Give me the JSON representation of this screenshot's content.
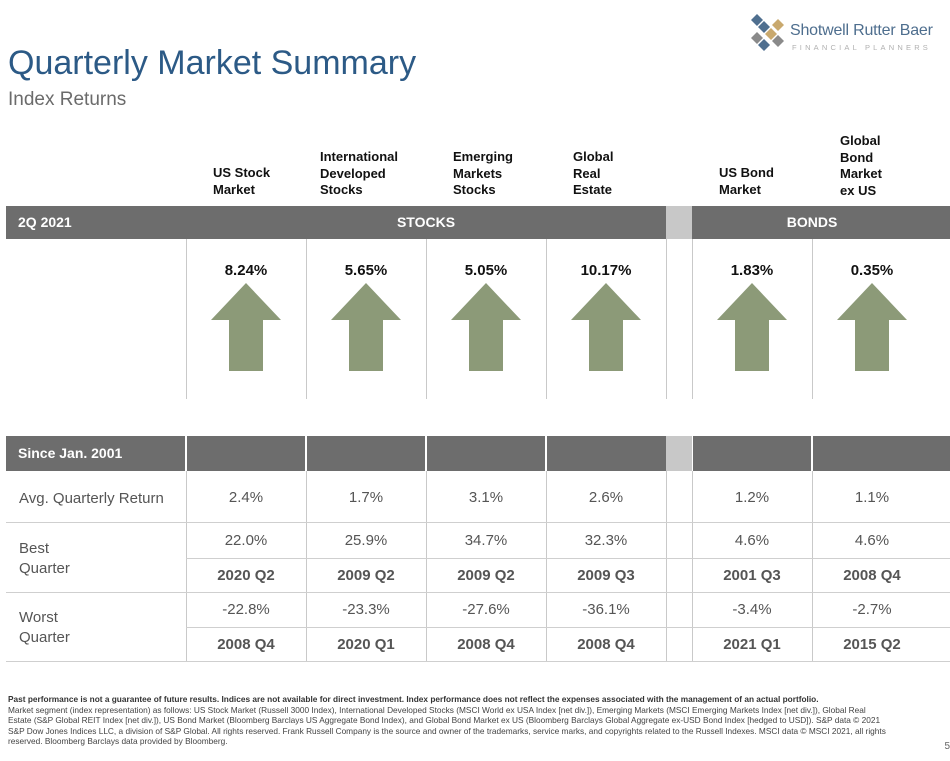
{
  "header": {
    "title": "Quarterly Market Summary",
    "subtitle": "Index Returns"
  },
  "logo": {
    "name": "Shotwell Rutter Baer",
    "tagline": "FINANCIAL PLANNERS",
    "colors": [
      "#4f6f8f",
      "#c9a96e",
      "#8a8a8a"
    ]
  },
  "columns": [
    {
      "label": "US Stock\nMarket"
    },
    {
      "label": "International\nDeveloped\nStocks"
    },
    {
      "label": "Emerging\nMarkets\nStocks"
    },
    {
      "label": "Global\nReal\nEstate"
    },
    {
      "label": "US Bond\nMarket"
    },
    {
      "label": "Global\nBond\nMarket\nex US"
    }
  ],
  "quarter_bar": {
    "period": "2Q 2021",
    "stocks": "STOCKS",
    "bonds": "BONDS"
  },
  "quarter_returns": [
    {
      "value": "8.24%",
      "direction": "up"
    },
    {
      "value": "5.65%",
      "direction": "up"
    },
    {
      "value": "5.05%",
      "direction": "up"
    },
    {
      "value": "10.17%",
      "direction": "up"
    },
    {
      "value": "1.83%",
      "direction": "up"
    },
    {
      "value": "0.35%",
      "direction": "up"
    }
  ],
  "since": {
    "label": "Since Jan. 2001",
    "avg_label": "Avg. Quarterly Return",
    "best_label": "Best\nQuarter",
    "worst_label": "Worst\nQuarter",
    "avg": [
      "2.4%",
      "1.7%",
      "3.1%",
      "2.6%",
      "1.2%",
      "1.1%"
    ],
    "best": [
      "22.0%",
      "25.9%",
      "34.7%",
      "32.3%",
      "4.6%",
      "4.6%"
    ],
    "best_q": [
      "2020 Q2",
      "2009 Q2",
      "2009 Q2",
      "2009 Q3",
      "2001 Q3",
      "2008 Q4"
    ],
    "worst": [
      "-22.8%",
      "-23.3%",
      "-27.6%",
      "-36.1%",
      "-3.4%",
      "-2.7%"
    ],
    "worst_q": [
      "2008 Q4",
      "2020 Q1",
      "2008 Q4",
      "2008 Q4",
      "2021 Q1",
      "2015 Q2"
    ]
  },
  "footer": {
    "bold": "Past performance is not a guarantee of future results. Indices are not available for direct investment. Index performance does not reflect the expenses associated with the management of an actual portfolio.",
    "text": "Market segment (index representation) as follows: US Stock Market (Russell 3000 Index), International Developed Stocks (MSCI World ex USA Index [net div.]), Emerging Markets (MSCI Emerging Markets Index [net div.]), Global Real Estate (S&P Global REIT Index [net div.]), US Bond Market (Bloomberg Barclays US Aggregate Bond Index), and Global Bond Market ex US (Bloomberg Barclays Global Aggregate ex-USD Bond Index [hedged to USD]). S&P data © 2021 S&P Dow Jones Indices LLC, a division of S&P Global. All rights reserved. Frank Russell Company is the source and owner of the trademarks, service marks, and copyrights related to the Russell Indexes. MSCI data © MSCI 2021, all rights reserved. Bloomberg Barclays data provided by Bloomberg.",
    "page": "5"
  },
  "colors": {
    "title": "#2c5a86",
    "bar": "#6d6d6d",
    "arrow": "#8c9a78"
  }
}
